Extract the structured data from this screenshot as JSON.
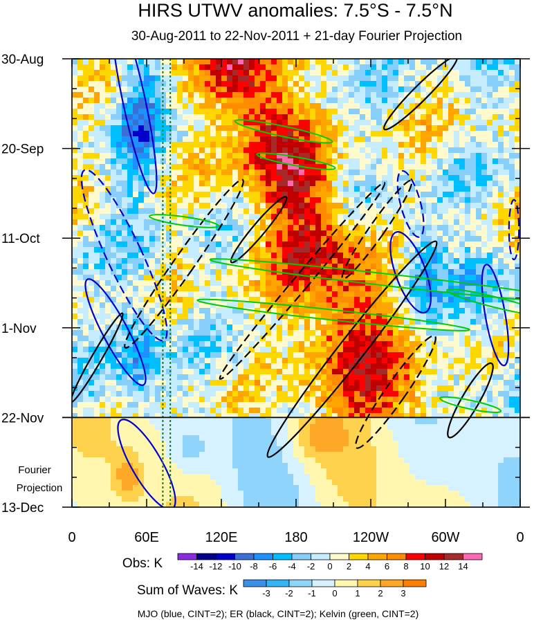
{
  "chart_data": {
    "type": "heatmap",
    "title": "HIRS UTWV anomalies: 7.5°S - 7.5°N",
    "subtitle": "30-Aug-2011 to 22-Nov-2011 + 21-day Fourier Projection",
    "x_ticks": [
      {
        "label": "0",
        "lon": 0
      },
      {
        "label": "60E",
        "lon": 60
      },
      {
        "label": "120E",
        "lon": 120
      },
      {
        "label": "180",
        "lon": 180
      },
      {
        "label": "120W",
        "lon": 240
      },
      {
        "label": "60W",
        "lon": 300
      },
      {
        "label": "0",
        "lon": 360
      }
    ],
    "xlim": [
      0,
      360
    ],
    "y_ticks": [
      {
        "label": "30-Aug",
        "day": 0
      },
      {
        "label": "20-Sep",
        "day": 21
      },
      {
        "label": "11-Oct",
        "day": 42
      },
      {
        "label": "1-Nov",
        "day": 63
      },
      {
        "label": "22-Nov",
        "day": 84
      },
      {
        "label": "13-Dec",
        "day": 105
      }
    ],
    "ylim_days": [
      0,
      105
    ],
    "projection_start_day": 84,
    "projection_label": [
      "Fourier",
      "Projection"
    ],
    "reference_lons": [
      73,
      79
    ],
    "obs_colorbar": {
      "label": "Obs: K",
      "tick_labels": [
        "-14",
        "-12",
        "-10",
        "-8",
        "-6",
        "-4",
        "-2",
        "0",
        "2",
        "4",
        "6",
        "8",
        "10",
        "12",
        "14"
      ],
      "colors": [
        "#8a2be2",
        "#00008b",
        "#0000cd",
        "#3a6fd8",
        "#1e90ff",
        "#00bfff",
        "#87cefa",
        "#c6ecff",
        "#fffacd",
        "#ffd700",
        "#ffa500",
        "#ff8c00",
        "#ff0000",
        "#c00000",
        "#a52a2a",
        "#ff69b4"
      ]
    },
    "waves_colorbar": {
      "label": "Sum of Waves: K",
      "tick_labels": [
        "-3",
        "-2",
        "-1",
        "0",
        "1",
        "2",
        "3"
      ],
      "colors": [
        "#3a8fe8",
        "#33b5f5",
        "#8fd4fb",
        "#d6f1ff",
        "#fff7b0",
        "#ffd24d",
        "#ffa726",
        "#ff7f00"
      ]
    },
    "series": [
      {
        "name": "MJO",
        "color": "#0000cd"
      },
      {
        "name": "ER",
        "color": "#000000"
      },
      {
        "name": "Kelvin",
        "color": "#00cc00"
      }
    ],
    "footer": "MJO (blue, CINT=2); ER (black, CINT=2); Kelvin (green, CINT=2)"
  }
}
